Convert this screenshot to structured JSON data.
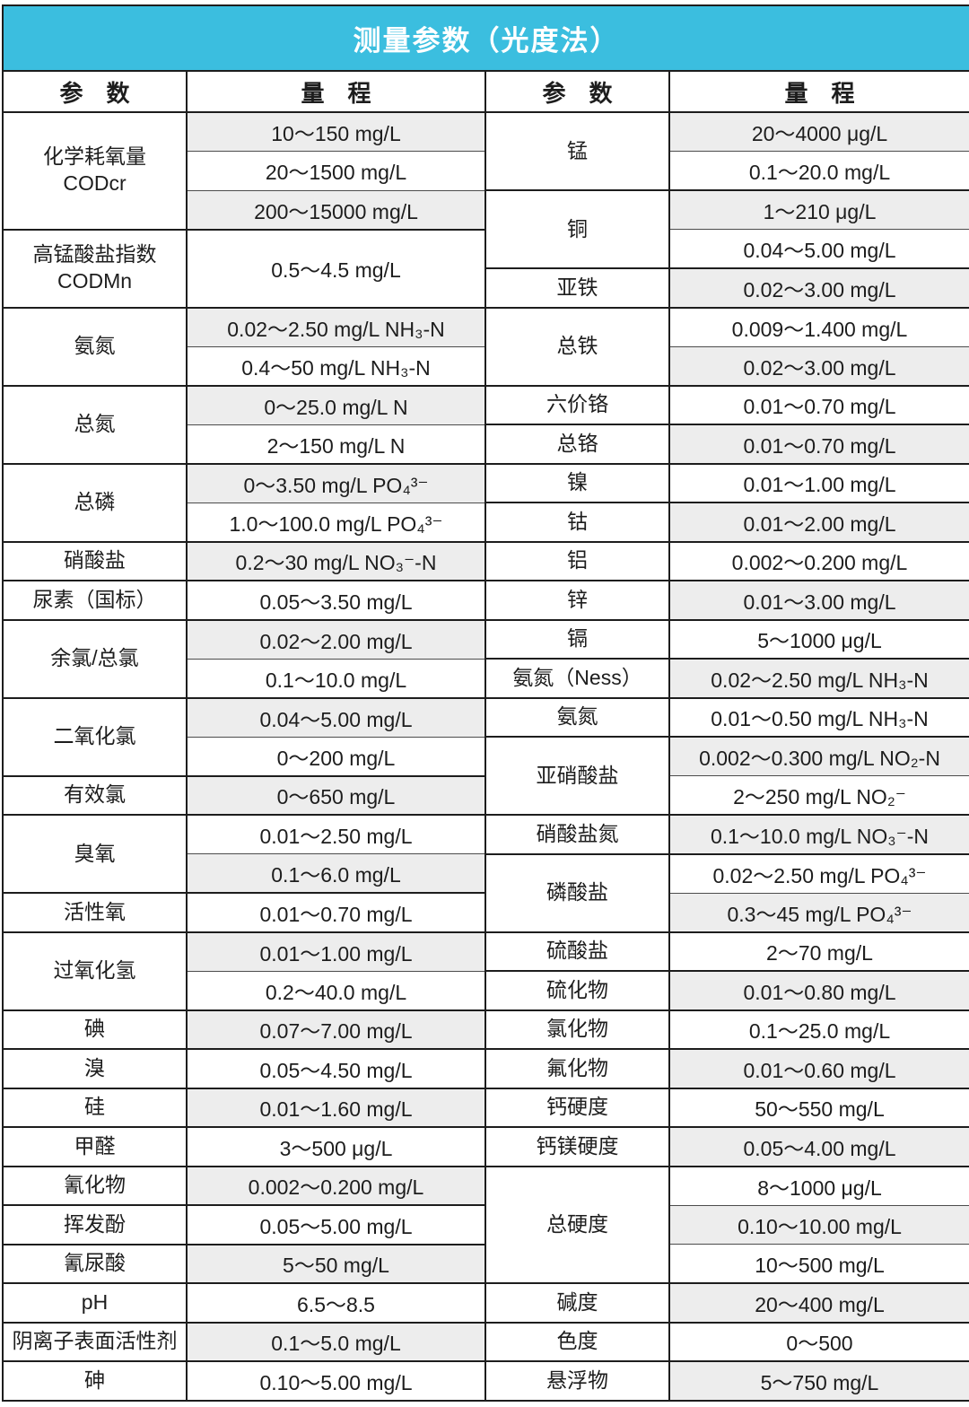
{
  "title": "测量参数（光度法）",
  "colors": {
    "header_bg": "#3bbedf",
    "header_text": "#ffffff",
    "range_shaded_bg": "#ededed",
    "border": "#1d1d1d"
  },
  "columns": {
    "param": "参　数",
    "range": "量　程"
  },
  "left": [
    {
      "param": "化学耗氧量\nCODcr",
      "ranges": [
        "10～150 mg/L",
        "20～1500 mg/L",
        "200～15000 mg/L"
      ]
    },
    {
      "param": "高锰酸盐指数\nCODMn",
      "ranges": [
        "0.5～4.5 mg/L"
      ]
    },
    {
      "param": "氨氮",
      "ranges": [
        "0.02～2.50 mg/L NH₃-N",
        "0.4～50 mg/L  NH₃-N"
      ]
    },
    {
      "param": "总氮",
      "ranges": [
        "0～25.0 mg/L N",
        "2～150 mg/L N"
      ]
    },
    {
      "param": "总磷",
      "ranges": [
        "0～3.50 mg/L PO₄³⁻",
        "1.0～100.0 mg/L PO₄³⁻"
      ]
    },
    {
      "param": "硝酸盐",
      "ranges": [
        "0.2～30 mg/L NO₃⁻-N"
      ]
    },
    {
      "param": "尿素（国标）",
      "ranges": [
        "0.05～3.50 mg/L"
      ]
    },
    {
      "param": "余氯/总氯",
      "ranges": [
        "0.02～2.00 mg/L",
        "0.1～10.0 mg/L"
      ]
    },
    {
      "param": "二氧化氯",
      "ranges": [
        "0.04～5.00 mg/L",
        "0～200 mg/L"
      ]
    },
    {
      "param": "有效氯",
      "ranges": [
        "0～650 mg/L"
      ]
    },
    {
      "param": "臭氧",
      "ranges": [
        "0.01～2.50 mg/L",
        "0.1～6.0 mg/L"
      ]
    },
    {
      "param": "活性氧",
      "ranges": [
        "0.01～0.70 mg/L"
      ]
    },
    {
      "param": "过氧化氢",
      "ranges": [
        "0.01～1.00 mg/L",
        "0.2～40.0 mg/L"
      ]
    },
    {
      "param": "碘",
      "ranges": [
        "0.07～7.00 mg/L"
      ]
    },
    {
      "param": "溴",
      "ranges": [
        "0.05～4.50 mg/L"
      ]
    },
    {
      "param": "硅",
      "ranges": [
        "0.01～1.60 mg/L"
      ]
    },
    {
      "param": "甲醛",
      "ranges": [
        "3～500 μg/L"
      ]
    },
    {
      "param": "氰化物",
      "ranges": [
        "0.002～0.200 mg/L"
      ]
    },
    {
      "param": "挥发酚",
      "ranges": [
        "0.05～5.00 mg/L"
      ]
    },
    {
      "param": "氰尿酸",
      "ranges": [
        "5～50 mg/L"
      ]
    },
    {
      "param": "pH",
      "ranges": [
        "6.5～8.5"
      ]
    },
    {
      "param": "阴离子表面活性剂",
      "ranges": [
        "0.1～5.0 mg/L"
      ]
    },
    {
      "param": "砷",
      "ranges": [
        "0.10～5.00 mg/L"
      ]
    }
  ],
  "right": [
    {
      "param": "锰",
      "ranges": [
        "20～4000 μg/L",
        "0.1～20.0 mg/L"
      ]
    },
    {
      "param": "铜",
      "ranges": [
        "1～210 μg/L",
        "0.04～5.00 mg/L"
      ]
    },
    {
      "param": "亚铁",
      "ranges": [
        "0.02～3.00 mg/L"
      ]
    },
    {
      "param": "总铁",
      "ranges": [
        "0.009～1.400 mg/L",
        "0.02～3.00 mg/L"
      ]
    },
    {
      "param": "六价铬",
      "ranges": [
        "0.01～0.70 mg/L"
      ]
    },
    {
      "param": "总铬",
      "ranges": [
        "0.01～0.70 mg/L"
      ]
    },
    {
      "param": "镍",
      "ranges": [
        "0.01～1.00 mg/L"
      ]
    },
    {
      "param": "钴",
      "ranges": [
        "0.01～2.00 mg/L"
      ]
    },
    {
      "param": "铝",
      "ranges": [
        "0.002～0.200 mg/L"
      ]
    },
    {
      "param": "锌",
      "ranges": [
        "0.01～3.00 mg/L"
      ]
    },
    {
      "param": "镉",
      "ranges": [
        "5～1000 μg/L"
      ]
    },
    {
      "param": "氨氮（Ness）",
      "ranges": [
        "0.02～2.50 mg/L  NH₃-N"
      ]
    },
    {
      "param": "氨氮",
      "ranges": [
        "0.01～0.50 mg/L  NH₃-N"
      ]
    },
    {
      "param": "亚硝酸盐",
      "ranges": [
        "0.002～0.300 mg/L  NO₂-N",
        "2～250 mg/L NO₂⁻"
      ]
    },
    {
      "param": "硝酸盐氮",
      "ranges": [
        "0.1～10.0 mg/L NO₃⁻-N"
      ]
    },
    {
      "param": "磷酸盐",
      "ranges": [
        "0.02～2.50 mg/L PO₄³⁻",
        "0.3～45 mg/L PO₄³⁻"
      ]
    },
    {
      "param": "硫酸盐",
      "ranges": [
        "2～70 mg/L"
      ]
    },
    {
      "param": "硫化物",
      "ranges": [
        "0.01～0.80 mg/L"
      ]
    },
    {
      "param": "氯化物",
      "ranges": [
        "0.1～25.0 mg/L"
      ]
    },
    {
      "param": "氟化物",
      "ranges": [
        "0.01～0.60 mg/L"
      ]
    },
    {
      "param": "钙硬度",
      "ranges": [
        "50～550 mg/L"
      ]
    },
    {
      "param": "钙镁硬度",
      "ranges": [
        "0.05～4.00 mg/L"
      ]
    },
    {
      "param": "总硬度",
      "ranges": [
        "8～1000 μg/L",
        "0.10～10.00 mg/L",
        "10～500 mg/L"
      ]
    },
    {
      "param": "碱度",
      "ranges": [
        "20～400 mg/L"
      ]
    },
    {
      "param": "色度",
      "ranges": [
        "0～500"
      ]
    },
    {
      "param": "悬浮物",
      "ranges": [
        "5～750 mg/L"
      ]
    }
  ]
}
